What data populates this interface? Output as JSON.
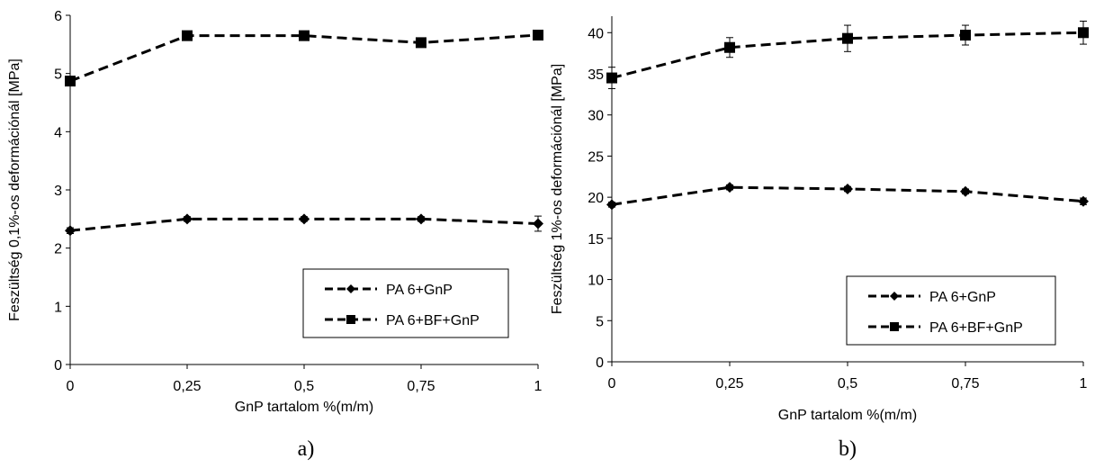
{
  "chart_data": [
    {
      "type": "line",
      "panel_label": "a)",
      "xlabel": "GnP tartalom %(m/m)",
      "ylabel": "Feszültség 0,1%-os deformációnál [MPa]",
      "x": [
        0,
        0.25,
        0.5,
        0.75,
        1
      ],
      "xtick_labels": [
        "0",
        "0,25",
        "0,5",
        "0,75",
        "1"
      ],
      "xlim": [
        0,
        1
      ],
      "ylim": [
        0,
        6
      ],
      "yticks": [
        0,
        1,
        2,
        3,
        4,
        5,
        6
      ],
      "ytick_labels": [
        "0",
        "1",
        "2",
        "3",
        "4",
        "5",
        "6"
      ],
      "grid": false,
      "legend_position": "bottom-right",
      "series": [
        {
          "name": "PA 6+GnP",
          "marker": "diamond",
          "values": [
            2.3,
            2.5,
            2.5,
            2.5,
            2.42
          ],
          "errors": [
            0.05,
            0.04,
            0.04,
            0.04,
            0.13
          ]
        },
        {
          "name": "PA 6+BF+GnP",
          "marker": "square",
          "values": [
            4.87,
            5.65,
            5.65,
            5.53,
            5.66
          ],
          "errors": [
            0.05,
            0.05,
            0.04,
            0.05,
            0.05
          ]
        }
      ]
    },
    {
      "type": "line",
      "panel_label": "b)",
      "xlabel": "GnP tartalom %(m/m)",
      "ylabel": "Feszültség 1%-os deformációnál [MPa]",
      "x": [
        0,
        0.25,
        0.5,
        0.75,
        1
      ],
      "xtick_labels": [
        "0",
        "0,25",
        "0,5",
        "0,75",
        "1"
      ],
      "xlim": [
        0,
        1
      ],
      "ylim": [
        0,
        42
      ],
      "yticks": [
        0,
        5,
        10,
        15,
        20,
        25,
        30,
        35,
        40
      ],
      "ytick_labels": [
        "0",
        "5",
        "10",
        "15",
        "20",
        "25",
        "30",
        "35",
        "40"
      ],
      "grid": false,
      "legend_position": "bottom-right",
      "series": [
        {
          "name": "PA 6+GnP",
          "marker": "diamond",
          "values": [
            19.1,
            21.2,
            21.0,
            20.7,
            19.5
          ],
          "errors": [
            0.3,
            0.3,
            0.3,
            0.3,
            0.4
          ]
        },
        {
          "name": "PA 6+BF+GnP",
          "marker": "square",
          "values": [
            34.5,
            38.2,
            39.3,
            39.7,
            40.0
          ],
          "errors": [
            1.3,
            1.2,
            1.6,
            1.2,
            1.4
          ]
        }
      ]
    }
  ]
}
